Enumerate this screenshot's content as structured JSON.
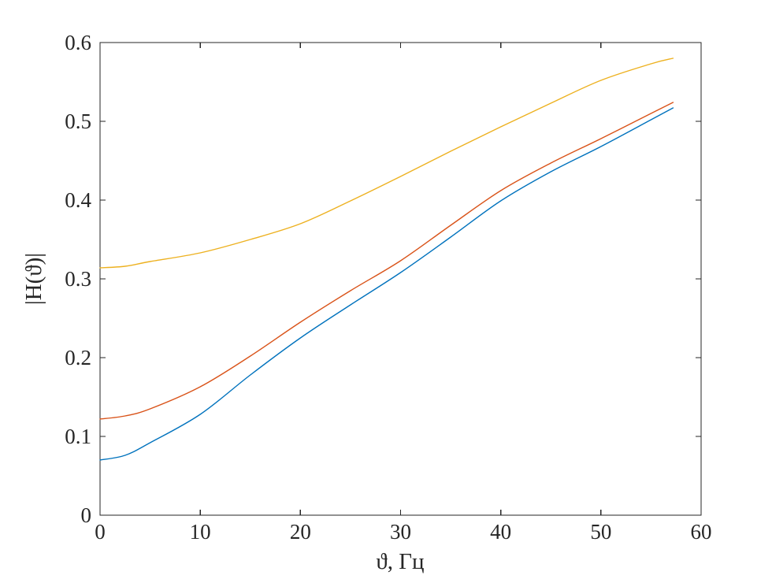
{
  "figure": {
    "background": "#ffffff",
    "axes_color": "#262626",
    "text_color": "#262626"
  },
  "chart_data": {
    "type": "line",
    "title": "",
    "xlabel": "ϑ, Гц",
    "ylabel": "|H(ϑ)|",
    "xlim": [
      0,
      60
    ],
    "ylim": [
      0,
      0.6
    ],
    "grid": false,
    "legend": "none",
    "box": true,
    "x_ticks": [
      0,
      10,
      20,
      30,
      40,
      50,
      60
    ],
    "x_tick_labels": [
      "0",
      "10",
      "20",
      "30",
      "40",
      "50",
      "60"
    ],
    "y_ticks": [
      0,
      0.1,
      0.2,
      0.3,
      0.4,
      0.5,
      0.6
    ],
    "y_tick_labels": [
      "0",
      "0.1",
      "0.2",
      "0.3",
      "0.4",
      "0.5",
      "0.6"
    ],
    "x": [
      0,
      2.5,
      5,
      10,
      15,
      20,
      25,
      30,
      35,
      40,
      45,
      50,
      55,
      57.2
    ],
    "series": [
      {
        "name": "blue-series",
        "color": "#0072BD",
        "values": [
          0.07,
          0.076,
          0.092,
          0.128,
          0.178,
          0.225,
          0.267,
          0.308,
          0.353,
          0.399,
          0.436,
          0.468,
          0.502,
          0.517
        ]
      },
      {
        "name": "orange-series",
        "color": "#D95319",
        "values": [
          0.122,
          0.126,
          0.135,
          0.163,
          0.202,
          0.245,
          0.285,
          0.323,
          0.368,
          0.412,
          0.447,
          0.478,
          0.51,
          0.524
        ]
      },
      {
        "name": "yellow-series",
        "color": "#EDB120",
        "values": [
          0.314,
          0.316,
          0.322,
          0.333,
          0.35,
          0.37,
          0.399,
          0.43,
          0.462,
          0.493,
          0.523,
          0.552,
          0.573,
          0.58
        ]
      }
    ]
  }
}
